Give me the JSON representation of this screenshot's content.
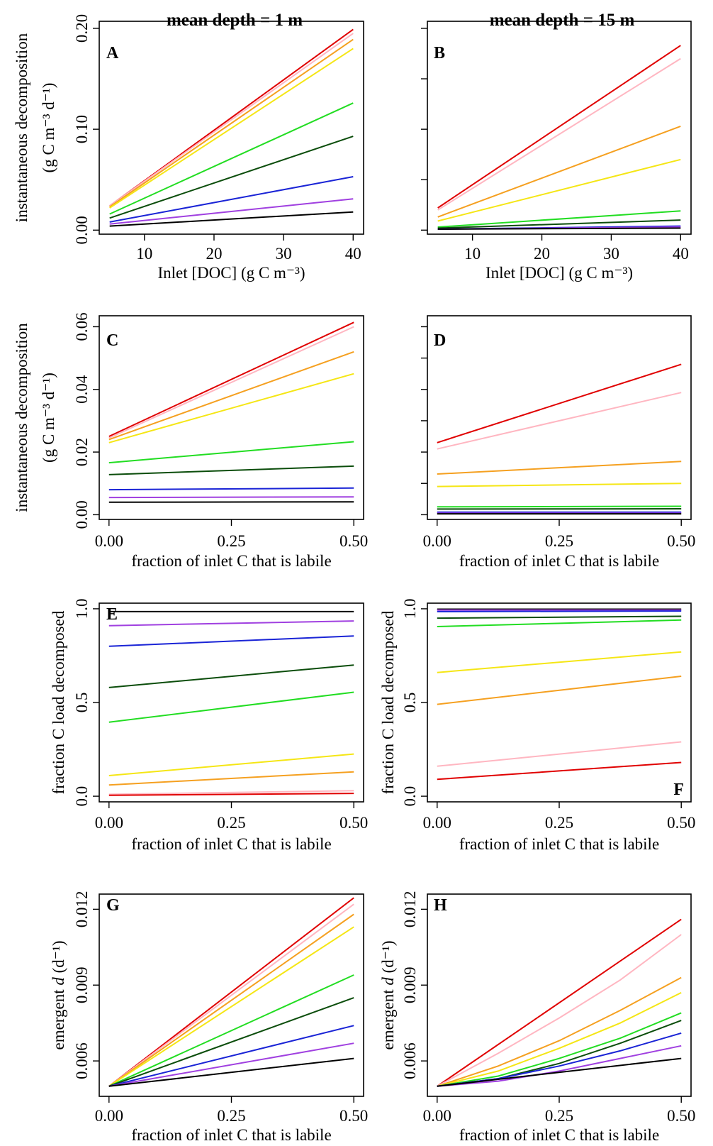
{
  "column_titles": [
    "mean depth = 1 m",
    "mean depth = 15 m"
  ],
  "chart_data": [
    {
      "panel": "A",
      "type": "line",
      "xlabel": "Inlet [DOC] (g C m⁻³)",
      "ylabel": [
        "instantaneous decomposition",
        "(g C m⁻³ d⁻¹)"
      ],
      "xlim": [
        3.5,
        41.5
      ],
      "ylim": [
        -0.004,
        0.207
      ],
      "xticks": [
        10,
        20,
        30,
        40
      ],
      "xtick_labels": [
        "10",
        "20",
        "30",
        "40"
      ],
      "yticks": [
        0,
        0.1,
        0.2
      ],
      "ytick_labels": [
        "0.00",
        "0.10",
        "0.20"
      ],
      "series": [
        {
          "color": "#e00000",
          "x": [
            5,
            40
          ],
          "y": [
            0.024,
            0.199
          ]
        },
        {
          "color": "#ffb6c1",
          "x": [
            5,
            40
          ],
          "y": [
            0.024,
            0.195
          ]
        },
        {
          "color": "#f5a020",
          "x": [
            5,
            40
          ],
          "y": [
            0.023,
            0.189
          ]
        },
        {
          "color": "#f5e615",
          "x": [
            5,
            40
          ],
          "y": [
            0.022,
            0.18
          ]
        },
        {
          "color": "#22dd22",
          "x": [
            5,
            40
          ],
          "y": [
            0.016,
            0.126
          ]
        },
        {
          "color": "#0b4d0b",
          "x": [
            5,
            40
          ],
          "y": [
            0.012,
            0.093
          ]
        },
        {
          "color": "#1a24d6",
          "x": [
            5,
            40
          ],
          "y": [
            0.008,
            0.053
          ]
        },
        {
          "color": "#a040e0",
          "x": [
            5,
            40
          ],
          "y": [
            0.006,
            0.031
          ]
        },
        {
          "color": "#000000",
          "x": [
            5,
            40
          ],
          "y": [
            0.004,
            0.018
          ]
        }
      ]
    },
    {
      "panel": "B",
      "type": "line",
      "xlabel": "Inlet [DOC] (g C m⁻³)",
      "ylabel": [],
      "xlim": [
        3.5,
        41.5
      ],
      "ylim": [
        -0.004,
        0.207
      ],
      "xticks": [
        10,
        20,
        30,
        40
      ],
      "xtick_labels": [
        "10",
        "20",
        "30",
        "40"
      ],
      "yticks": [
        0,
        0.05,
        0.1,
        0.15,
        0.2
      ],
      "ytick_labels": [],
      "series": [
        {
          "color": "#e00000",
          "x": [
            5,
            40
          ],
          "y": [
            0.022,
            0.183
          ]
        },
        {
          "color": "#ffb6c1",
          "x": [
            5,
            40
          ],
          "y": [
            0.02,
            0.17
          ]
        },
        {
          "color": "#f5a020",
          "x": [
            5,
            40
          ],
          "y": [
            0.013,
            0.103
          ]
        },
        {
          "color": "#f5e615",
          "x": [
            5,
            40
          ],
          "y": [
            0.009,
            0.07
          ]
        },
        {
          "color": "#22dd22",
          "x": [
            5,
            40
          ],
          "y": [
            0.003,
            0.019
          ]
        },
        {
          "color": "#0b4d0b",
          "x": [
            5,
            40
          ],
          "y": [
            0.002,
            0.01
          ]
        },
        {
          "color": "#1a24d6",
          "x": [
            5,
            40
          ],
          "y": [
            0.001,
            0.004
          ]
        },
        {
          "color": "#a040e0",
          "x": [
            5,
            40
          ],
          "y": [
            0.001,
            0.003
          ]
        },
        {
          "color": "#000000",
          "x": [
            5,
            40
          ],
          "y": [
            0.001,
            0.002
          ]
        }
      ]
    },
    {
      "panel": "C",
      "type": "line",
      "xlabel": "fraction of inlet C that is labile",
      "ylabel": [
        "instantaneous decomposition",
        "(g C m⁻³ d⁻¹)"
      ],
      "xlim": [
        -0.02,
        0.52
      ],
      "ylim": [
        -0.0015,
        0.0635
      ],
      "xticks": [
        0,
        0.25,
        0.5
      ],
      "xtick_labels": [
        "0.00",
        "0.25",
        "0.50"
      ],
      "yticks": [
        0,
        0.02,
        0.04,
        0.06
      ],
      "ytick_labels": [
        "0.00",
        "0.02",
        "0.04",
        "0.06"
      ],
      "series": [
        {
          "color": "#e00000",
          "x": [
            0,
            0.5
          ],
          "y": [
            0.025,
            0.0614
          ]
        },
        {
          "color": "#ffb6c1",
          "x": [
            0,
            0.5
          ],
          "y": [
            0.0245,
            0.06
          ]
        },
        {
          "color": "#f5a020",
          "x": [
            0,
            0.5
          ],
          "y": [
            0.024,
            0.052
          ]
        },
        {
          "color": "#f5e615",
          "x": [
            0,
            0.5
          ],
          "y": [
            0.023,
            0.045
          ]
        },
        {
          "color": "#22dd22",
          "x": [
            0,
            0.5
          ],
          "y": [
            0.0166,
            0.0233
          ]
        },
        {
          "color": "#0b4d0b",
          "x": [
            0,
            0.5
          ],
          "y": [
            0.0128,
            0.0155
          ]
        },
        {
          "color": "#1a24d6",
          "x": [
            0,
            0.5
          ],
          "y": [
            0.008,
            0.0085
          ]
        },
        {
          "color": "#a040e0",
          "x": [
            0,
            0.5
          ],
          "y": [
            0.0055,
            0.0057
          ]
        },
        {
          "color": "#000000",
          "x": [
            0,
            0.5
          ],
          "y": [
            0.004,
            0.0041
          ]
        }
      ]
    },
    {
      "panel": "D",
      "type": "line",
      "xlabel": "fraction of inlet C that is labile",
      "ylabel": [],
      "xlim": [
        -0.02,
        0.52
      ],
      "ylim": [
        -0.0015,
        0.0635
      ],
      "xticks": [
        0,
        0.25,
        0.5
      ],
      "xtick_labels": [
        "0.00",
        "0.25",
        "0.50"
      ],
      "yticks": [
        0,
        0.01,
        0.02,
        0.03,
        0.04,
        0.05,
        0.06
      ],
      "ytick_labels": [],
      "series": [
        {
          "color": "#e00000",
          "x": [
            0,
            0.5
          ],
          "y": [
            0.023,
            0.048
          ]
        },
        {
          "color": "#ffb6c1",
          "x": [
            0,
            0.5
          ],
          "y": [
            0.021,
            0.039
          ]
        },
        {
          "color": "#f5a020",
          "x": [
            0,
            0.5
          ],
          "y": [
            0.013,
            0.017
          ]
        },
        {
          "color": "#f5e615",
          "x": [
            0,
            0.5
          ],
          "y": [
            0.009,
            0.01
          ]
        },
        {
          "color": "#22dd22",
          "x": [
            0,
            0.5
          ],
          "y": [
            0.0025,
            0.0027
          ]
        },
        {
          "color": "#0b4d0b",
          "x": [
            0,
            0.5
          ],
          "y": [
            0.0018,
            0.0019
          ]
        },
        {
          "color": "#1a24d6",
          "x": [
            0,
            0.5
          ],
          "y": [
            0.0008,
            0.0008
          ]
        },
        {
          "color": "#a040e0",
          "x": [
            0,
            0.5
          ],
          "y": [
            0.0005,
            0.0005
          ]
        },
        {
          "color": "#000000",
          "x": [
            0,
            0.5
          ],
          "y": [
            0.0003,
            0.0003
          ]
        }
      ]
    },
    {
      "panel": "E",
      "type": "line",
      "xlabel": "fraction of inlet C that is labile",
      "ylabel": [
        "fraction C load decomposed"
      ],
      "xlim": [
        -0.02,
        0.52
      ],
      "ylim": [
        -0.03,
        1.03
      ],
      "xticks": [
        0,
        0.25,
        0.5
      ],
      "xtick_labels": [
        "0.00",
        "0.25",
        "0.50"
      ],
      "yticks": [
        0,
        0.5,
        1.0
      ],
      "ytick_labels": [
        "0.0",
        "0.5",
        "1.0"
      ],
      "series": [
        {
          "color": "#000000",
          "x": [
            0,
            0.5
          ],
          "y": [
            0.985,
            0.985
          ]
        },
        {
          "color": "#a040e0",
          "x": [
            0,
            0.5
          ],
          "y": [
            0.91,
            0.935
          ]
        },
        {
          "color": "#1a24d6",
          "x": [
            0,
            0.5
          ],
          "y": [
            0.8,
            0.855
          ]
        },
        {
          "color": "#0b4d0b",
          "x": [
            0,
            0.5
          ],
          "y": [
            0.58,
            0.7
          ]
        },
        {
          "color": "#22dd22",
          "x": [
            0,
            0.5
          ],
          "y": [
            0.395,
            0.555
          ]
        },
        {
          "color": "#f5e615",
          "x": [
            0,
            0.5
          ],
          "y": [
            0.11,
            0.225
          ]
        },
        {
          "color": "#f5a020",
          "x": [
            0,
            0.5
          ],
          "y": [
            0.06,
            0.13
          ]
        },
        {
          "color": "#ffb6c1",
          "x": [
            0,
            0.5
          ],
          "y": [
            0.01,
            0.03
          ]
        },
        {
          "color": "#e00000",
          "x": [
            0,
            0.5
          ],
          "y": [
            0.005,
            0.015
          ]
        }
      ]
    },
    {
      "panel": "F",
      "type": "line",
      "xlabel": "fraction of inlet C that is labile",
      "ylabel": [
        "fraction C load decomposed"
      ],
      "xlim": [
        -0.02,
        0.52
      ],
      "ylim": [
        -0.03,
        1.03
      ],
      "xticks": [
        0,
        0.25,
        0.5
      ],
      "xtick_labels": [
        "0.00",
        "0.25",
        "0.50"
      ],
      "yticks": [
        0,
        0.5,
        1.0
      ],
      "ytick_labels": [
        "0.0",
        "0.5",
        "1.0"
      ],
      "series": [
        {
          "color": "#000000",
          "x": [
            0,
            0.5
          ],
          "y": [
            0.998,
            0.998
          ]
        },
        {
          "color": "#a040e0",
          "x": [
            0,
            0.5
          ],
          "y": [
            0.993,
            0.993
          ]
        },
        {
          "color": "#1a24d6",
          "x": [
            0,
            0.5
          ],
          "y": [
            0.985,
            0.988
          ]
        },
        {
          "color": "#0b4d0b",
          "x": [
            0,
            0.5
          ],
          "y": [
            0.95,
            0.96
          ]
        },
        {
          "color": "#22dd22",
          "x": [
            0,
            0.5
          ],
          "y": [
            0.905,
            0.94
          ]
        },
        {
          "color": "#f5e615",
          "x": [
            0,
            0.5
          ],
          "y": [
            0.66,
            0.77
          ]
        },
        {
          "color": "#f5a020",
          "x": [
            0,
            0.5
          ],
          "y": [
            0.49,
            0.64
          ]
        },
        {
          "color": "#ffb6c1",
          "x": [
            0,
            0.5
          ],
          "y": [
            0.16,
            0.29
          ]
        },
        {
          "color": "#e00000",
          "x": [
            0,
            0.5
          ],
          "y": [
            0.09,
            0.18
          ]
        }
      ]
    },
    {
      "panel": "G",
      "type": "line",
      "xlabel": "fraction of inlet C that is labile",
      "ylabel": [
        "emergent ",
        "d",
        " (d⁻¹)"
      ],
      "xlim": [
        -0.02,
        0.52
      ],
      "ylim": [
        0.0046,
        0.0126
      ],
      "xticks": [
        0,
        0.25,
        0.5
      ],
      "xtick_labels": [
        "0.00",
        "0.25",
        "0.50"
      ],
      "yticks": [
        0.006,
        0.009,
        0.012
      ],
      "ytick_labels": [
        "0.006",
        "0.009",
        "0.012"
      ],
      "series": [
        {
          "color": "#e00000",
          "x": [
            0,
            0.5
          ],
          "y": [
            0.005,
            0.01245
          ]
        },
        {
          "color": "#ffb6c1",
          "x": [
            0,
            0.5
          ],
          "y": [
            0.005,
            0.0122
          ]
        },
        {
          "color": "#f5a020",
          "x": [
            0,
            0.5
          ],
          "y": [
            0.005,
            0.0118
          ]
        },
        {
          "color": "#f5e615",
          "x": [
            0,
            0.5
          ],
          "y": [
            0.005,
            0.0113
          ]
        },
        {
          "color": "#22dd22",
          "x": [
            0,
            0.5
          ],
          "y": [
            0.005,
            0.0094
          ]
        },
        {
          "color": "#0b4d0b",
          "x": [
            0,
            0.5
          ],
          "y": [
            0.005,
            0.0085
          ]
        },
        {
          "color": "#1a24d6",
          "x": [
            0,
            0.5
          ],
          "y": [
            0.005,
            0.0074
          ]
        },
        {
          "color": "#a040e0",
          "x": [
            0,
            0.5
          ],
          "y": [
            0.005,
            0.0067
          ]
        },
        {
          "color": "#000000",
          "x": [
            0,
            0.5
          ],
          "y": [
            0.005,
            0.0061
          ]
        }
      ]
    },
    {
      "panel": "H",
      "type": "line",
      "xlabel": "fraction of inlet C that is labile",
      "ylabel": [
        "emergent ",
        "d",
        " (d⁻¹)"
      ],
      "xlim": [
        -0.02,
        0.52
      ],
      "ylim": [
        0.0046,
        0.0126
      ],
      "xticks": [
        0,
        0.25,
        0.5
      ],
      "xtick_labels": [
        "0.00",
        "0.25",
        "0.50"
      ],
      "yticks": [
        0.006,
        0.009,
        0.012
      ],
      "ytick_labels": [
        "0.006",
        "0.009",
        "0.012"
      ],
      "series": [
        {
          "color": "#e00000",
          "x": [
            0,
            0.5
          ],
          "y": [
            0.005,
            0.0116
          ]
        },
        {
          "color": "#ffb6c1",
          "x": [
            0,
            0.125,
            0.25,
            0.375,
            0.5
          ],
          "y": [
            0.005,
            0.0063,
            0.0077,
            0.0092,
            0.011
          ]
        },
        {
          "color": "#f5a020",
          "x": [
            0,
            0.125,
            0.25,
            0.375,
            0.5
          ],
          "y": [
            0.005,
            0.0058,
            0.0068,
            0.008,
            0.0093
          ]
        },
        {
          "color": "#f5e615",
          "x": [
            0,
            0.125,
            0.25,
            0.375,
            0.5
          ],
          "y": [
            0.005,
            0.0056,
            0.0065,
            0.0075,
            0.0087
          ]
        },
        {
          "color": "#22dd22",
          "x": [
            0,
            0.125,
            0.25,
            0.375,
            0.5
          ],
          "y": [
            0.005,
            0.0054,
            0.0061,
            0.0069,
            0.0079
          ]
        },
        {
          "color": "#0b4d0b",
          "x": [
            0,
            0.125,
            0.25,
            0.375,
            0.5
          ],
          "y": [
            0.005,
            0.0053,
            0.0059,
            0.0067,
            0.0076
          ]
        },
        {
          "color": "#1a24d6",
          "x": [
            0,
            0.125,
            0.25,
            0.375,
            0.5
          ],
          "y": [
            0.005,
            0.0053,
            0.0058,
            0.0064,
            0.0071
          ]
        },
        {
          "color": "#a040e0",
          "x": [
            0,
            0.125,
            0.25,
            0.375,
            0.5
          ],
          "y": [
            0.005,
            0.0052,
            0.0056,
            0.0061,
            0.0066
          ]
        },
        {
          "color": "#000000",
          "x": [
            0,
            0.5
          ],
          "y": [
            0.005,
            0.0061
          ]
        }
      ]
    }
  ]
}
